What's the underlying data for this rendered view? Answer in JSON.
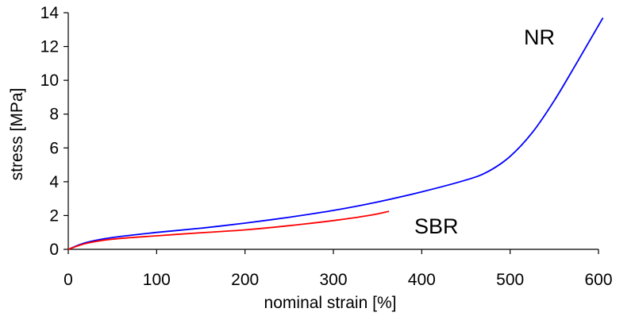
{
  "chart_data": {
    "type": "line",
    "title": "",
    "xlabel": "nominal strain [%]",
    "ylabel": "stress [MPa]",
    "xlim": [
      0,
      600
    ],
    "ylim": [
      0,
      14
    ],
    "x_ticks": [
      0,
      100,
      200,
      300,
      400,
      500,
      600
    ],
    "y_ticks": [
      0,
      2,
      4,
      6,
      8,
      10,
      12,
      14
    ],
    "grid": false,
    "legend": "none",
    "series": [
      {
        "name": "NR",
        "color": "#0000ff",
        "x": [
          0,
          20,
          50,
          100,
          150,
          200,
          250,
          300,
          350,
          400,
          450,
          475,
          500,
          525,
          550,
          575,
          605
        ],
        "y": [
          0,
          0.4,
          0.7,
          1.0,
          1.25,
          1.55,
          1.9,
          2.3,
          2.8,
          3.4,
          4.1,
          4.6,
          5.5,
          6.9,
          8.8,
          11.0,
          13.7
        ]
      },
      {
        "name": "SBR",
        "color": "#ff0000",
        "x": [
          0,
          20,
          50,
          100,
          150,
          200,
          250,
          300,
          340,
          363
        ],
        "y": [
          0,
          0.35,
          0.6,
          0.8,
          0.98,
          1.15,
          1.4,
          1.7,
          2.0,
          2.25
        ]
      }
    ]
  }
}
